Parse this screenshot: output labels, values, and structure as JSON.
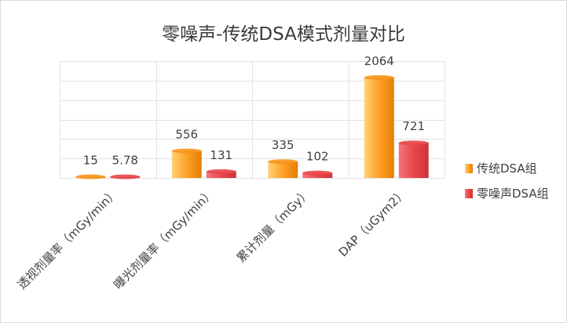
{
  "chart_data": {
    "type": "bar",
    "title": "零噪声-传统DSA模式剂量对比",
    "categories": [
      "透视剂量率（mGy/min）",
      "曝光剂量率（mGy/min）",
      "累计剂量（mGy）",
      "DAP（uGym2）"
    ],
    "series": [
      {
        "name": "传统DSA组",
        "values": [
          15,
          556,
          335,
          2064
        ],
        "labels": [
          "15",
          "556",
          "335",
          "2064"
        ],
        "color": "#f7941d"
      },
      {
        "name": "零噪声DSA组",
        "values": [
          5.78,
          131,
          102,
          721
        ],
        "labels": [
          "5.78",
          "131",
          "102",
          "721"
        ],
        "color": "#e8474b"
      }
    ],
    "ylim": [
      0,
      2400
    ],
    "grid": true,
    "legend_position": "right"
  }
}
